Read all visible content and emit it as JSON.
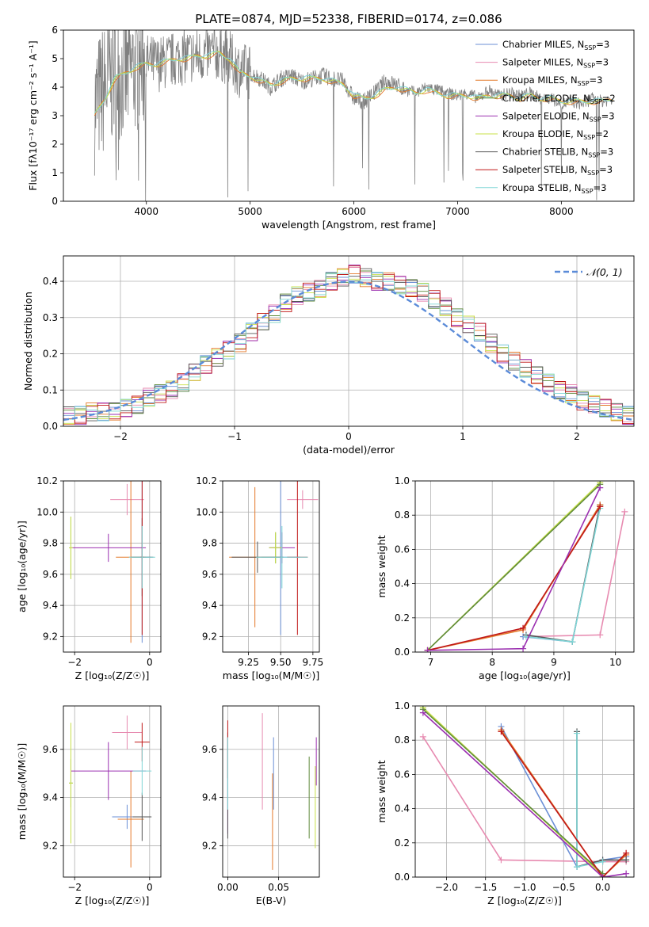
{
  "colors": {
    "chabrier_miles": "#6b8fd6",
    "salpeter_miles": "#e78ab0",
    "kroupa_miles": "#e47a2a",
    "chabrier_elodie": "#5f8a3a",
    "salpeter_elodie": "#9b30b0",
    "kroupa_elodie": "#c8e04a",
    "chabrier_stelib": "#555555",
    "salpeter_stelib": "#c01818",
    "kroupa_stelib": "#7fd6d6",
    "spectrum_gray": "#808080",
    "normal_curve": "#5b8bd8",
    "grid": "#b0b0b0"
  },
  "chart_data": [
    {
      "id": "spectrum",
      "type": "line",
      "title": "PLATE=0874, MJD=52338, FIBERID=0174, z=0.086",
      "xlabel": "wavelength [Angstrom, rest frame]",
      "ylabel": "Flux [fλ10⁻¹⁷ erg cm⁻² s⁻¹ A⁻¹]",
      "xlim": [
        3200,
        8700
      ],
      "ylim": [
        0,
        6
      ],
      "xticks": [
        4000,
        5000,
        6000,
        7000,
        8000
      ],
      "yticks": [
        0,
        1,
        2,
        3,
        4,
        5,
        6
      ],
      "grid": false,
      "legend_position": "top-right",
      "legend": [
        {
          "label": "Chabrier MILES, N",
          "sub": "SSP",
          "suffix": "=3",
          "color": "chabrier_miles"
        },
        {
          "label": "Salpeter MILES, N",
          "sub": "SSP",
          "suffix": "=3",
          "color": "salpeter_miles"
        },
        {
          "label": "Kroupa MILES, N",
          "sub": "SSP",
          "suffix": "=3",
          "color": "kroupa_miles"
        },
        {
          "label": "Chabrier ELODIE, N",
          "sub": "SSP",
          "suffix": "=2",
          "color": "chabrier_elodie"
        },
        {
          "label": "Salpeter ELODIE, N",
          "sub": "SSP",
          "suffix": "=3",
          "color": "salpeter_elodie"
        },
        {
          "label": "Kroupa ELODIE, N",
          "sub": "SSP",
          "suffix": "=2",
          "color": "kroupa_elodie"
        },
        {
          "label": "Chabrier STELIB, N",
          "sub": "SSP",
          "suffix": "=3",
          "color": "chabrier_stelib"
        },
        {
          "label": "Salpeter STELIB, N",
          "sub": "SSP",
          "suffix": "=3",
          "color": "salpeter_stelib"
        },
        {
          "label": "Kroupa STELIB, N",
          "sub": "SSP",
          "suffix": "=3",
          "color": "kroupa_stelib"
        }
      ],
      "data_x": [
        3500,
        3600,
        3700,
        3800,
        3900,
        4000,
        4100,
        4200,
        4300,
        4400,
        4500,
        4600,
        4700,
        4800,
        4900,
        5000,
        5100,
        5200,
        5300,
        5400,
        5500,
        5600,
        5700,
        5800,
        5900,
        6000,
        6100,
        6200,
        6300,
        6400,
        6500,
        6600,
        6700,
        6800,
        6900,
        7000,
        7100,
        7200,
        7300,
        7400,
        7500,
        7600,
        7700,
        7800,
        7900,
        8000,
        8100,
        8200,
        8300,
        8400,
        8500
      ],
      "data_y": [
        3.3,
        4.0,
        4.5,
        4.4,
        4.7,
        4.9,
        4.8,
        4.9,
        5.0,
        5.1,
        5.1,
        5.2,
        5.2,
        5.0,
        4.6,
        4.5,
        4.3,
        4.0,
        4.3,
        4.4,
        4.2,
        4.3,
        4.4,
        4.3,
        4.2,
        3.6,
        3.5,
        3.8,
        4.2,
        4.1,
        3.9,
        3.8,
        4.0,
        3.9,
        3.8,
        3.7,
        3.8,
        3.6,
        3.9,
        3.7,
        3.8,
        3.7,
        3.8,
        3.6,
        3.6,
        3.4,
        3.5,
        3.4,
        3.6,
        3.5,
        3.6
      ],
      "model_y": [
        3.0,
        3.6,
        4.3,
        4.5,
        4.7,
        4.8,
        4.8,
        4.9,
        5.0,
        5.0,
        5.1,
        5.1,
        5.2,
        5.0,
        4.5,
        4.4,
        4.2,
        4.1,
        4.2,
        4.3,
        4.3,
        4.3,
        4.3,
        4.2,
        4.1,
        3.7,
        3.6,
        3.7,
        3.9,
        4.0,
        3.9,
        3.8,
        3.9,
        3.8,
        3.7,
        3.7,
        3.7,
        3.6,
        3.7,
        3.7,
        3.7,
        3.6,
        3.7,
        3.6,
        3.6,
        3.5,
        3.5,
        3.5,
        3.5,
        3.5,
        3.6
      ]
    },
    {
      "id": "residuals",
      "type": "histogram",
      "xlabel": "(data-model)/error",
      "ylabel": "Normed distribution",
      "xlim": [
        -2.5,
        2.5
      ],
      "ylim": [
        0,
        0.47
      ],
      "xticks": [
        -2,
        -1,
        0,
        1,
        2
      ],
      "yticks": [
        0.0,
        0.1,
        0.2,
        0.3,
        0.4
      ],
      "grid": true,
      "legend_position": "top-right",
      "legend": [
        {
          "label": "𝒩(0, 1)",
          "color": "normal_curve"
        }
      ],
      "bin_edges": [
        -2.5,
        -2.4,
        -2.3,
        -2.2,
        -2.1,
        -2.0,
        -1.9,
        -1.8,
        -1.7,
        -1.6,
        -1.5,
        -1.4,
        -1.3,
        -1.2,
        -1.1,
        -1.0,
        -0.9,
        -0.8,
        -0.7,
        -0.6,
        -0.5,
        -0.4,
        -0.3,
        -0.2,
        -0.1,
        0.0,
        0.1,
        0.2,
        0.3,
        0.4,
        0.5,
        0.6,
        0.7,
        0.8,
        0.9,
        1.0,
        1.1,
        1.2,
        1.3,
        1.4,
        1.5,
        1.6,
        1.7,
        1.8,
        1.9,
        2.0,
        2.1,
        2.2,
        2.3,
        2.4,
        2.5
      ],
      "base_density": [
        0.03,
        0.03,
        0.04,
        0.04,
        0.04,
        0.05,
        0.06,
        0.08,
        0.09,
        0.1,
        0.12,
        0.15,
        0.17,
        0.19,
        0.21,
        0.23,
        0.26,
        0.29,
        0.31,
        0.34,
        0.36,
        0.37,
        0.38,
        0.4,
        0.41,
        0.42,
        0.41,
        0.4,
        0.4,
        0.39,
        0.38,
        0.37,
        0.35,
        0.33,
        0.3,
        0.28,
        0.26,
        0.23,
        0.2,
        0.18,
        0.16,
        0.14,
        0.12,
        0.1,
        0.09,
        0.07,
        0.06,
        0.05,
        0.04,
        0.03
      ],
      "normal_curve": {
        "mean": 0,
        "sigma": 1
      }
    },
    {
      "id": "age_vs_Z",
      "type": "errorbar",
      "xlabel": "Z [log₁₀(Z/Z☉)]",
      "ylabel": "age  [log₁₀(age/yr)]",
      "xlim": [
        -2.3,
        0.3
      ],
      "ylim": [
        9.1,
        10.2
      ],
      "xticks": [
        -2,
        0
      ],
      "yticks": [
        9.2,
        9.4,
        9.6,
        9.8,
        10.0,
        10.2
      ],
      "grid": true,
      "points": [
        {
          "color": "chabrier_miles",
          "x": -0.2,
          "xerr": 0.25,
          "y": 9.71,
          "yerr": 0.55
        },
        {
          "color": "salpeter_miles",
          "x": -0.6,
          "xerr": 0.45,
          "y": 10.08,
          "yerr": 0.1
        },
        {
          "color": "kroupa_miles",
          "x": -0.5,
          "xerr": 0.4,
          "y": 9.71,
          "yerr": 0.55
        },
        {
          "color": "chabrier_elodie",
          "x": -2.1,
          "xerr": 0.05,
          "y": 9.77,
          "yerr": 0.2
        },
        {
          "color": "salpeter_elodie",
          "x": -1.1,
          "xerr": 1.0,
          "y": 9.77,
          "yerr": 0.09
        },
        {
          "color": "kroupa_elodie",
          "x": -2.1,
          "xerr": 0.05,
          "y": 9.77,
          "yerr": 0.2
        },
        {
          "color": "chabrier_stelib",
          "x": -0.2,
          "xerr": 0.3,
          "y": 9.71,
          "yerr": 0.25
        },
        {
          "color": "salpeter_stelib",
          "x": -0.2,
          "xerr": 0.05,
          "y": 9.71,
          "yerr": 0.5
        },
        {
          "color": "kroupa_stelib",
          "x": -0.2,
          "xerr": 0.35,
          "y": 9.71,
          "yerr": 0.2
        }
      ]
    },
    {
      "id": "age_vs_mass",
      "type": "errorbar",
      "xlabel": "mass [log₁₀(M/M☉)]",
      "ylabel": "",
      "xlim": [
        9.05,
        9.8
      ],
      "ylim": [
        9.1,
        10.2
      ],
      "xticks": [
        9.25,
        9.5,
        9.75
      ],
      "yticks": [
        9.2,
        9.4,
        9.6,
        9.8,
        10.0,
        10.2
      ],
      "grid": true,
      "points": [
        {
          "color": "chabrier_miles",
          "x": 9.5,
          "xerr": 0.15,
          "y": 9.71,
          "yerr": 0.5
        },
        {
          "color": "salpeter_miles",
          "x": 9.67,
          "xerr": 0.12,
          "y": 10.08,
          "yerr": 0.06
        },
        {
          "color": "kroupa_miles",
          "x": 9.3,
          "xerr": 0.2,
          "y": 9.71,
          "yerr": 0.45
        },
        {
          "color": "chabrier_elodie",
          "x": 9.46,
          "xerr": 0.05,
          "y": 9.77,
          "yerr": 0.1
        },
        {
          "color": "salpeter_elodie",
          "x": 9.51,
          "xerr": 0.1,
          "y": 9.77,
          "yerr": 0.1
        },
        {
          "color": "kroupa_elodie",
          "x": 9.46,
          "xerr": 0.05,
          "y": 9.77,
          "yerr": 0.1
        },
        {
          "color": "chabrier_stelib",
          "x": 9.32,
          "xerr": 0.2,
          "y": 9.71,
          "yerr": 0.1
        },
        {
          "color": "salpeter_stelib",
          "x": 9.63,
          "xerr": 0.08,
          "y": 9.71,
          "yerr": 0.5
        },
        {
          "color": "kroupa_stelib",
          "x": 9.51,
          "xerr": 0.2,
          "y": 9.71,
          "yerr": 0.2
        }
      ]
    },
    {
      "id": "mass_weight_vs_age",
      "type": "line",
      "xlabel": "age  [log₁₀(age/yr)]",
      "ylabel": "mass weight",
      "xlim": [
        6.75,
        10.3
      ],
      "ylim": [
        0,
        1
      ],
      "xticks": [
        7,
        8,
        9,
        10
      ],
      "yticks": [
        0.0,
        0.2,
        0.4,
        0.6,
        0.8,
        1.0
      ],
      "grid": true,
      "series": [
        {
          "color": "salpeter_miles",
          "x": [
            8.5,
            9.75,
            10.15
          ],
          "y": [
            0.09,
            0.1,
            0.82
          ]
        },
        {
          "color": "chabrier_miles",
          "x": [
            8.5,
            9.3,
            9.75
          ],
          "y": [
            0.09,
            0.06,
            0.85
          ]
        },
        {
          "color": "chabrier_stelib",
          "x": [
            8.55,
            9.3,
            9.75
          ],
          "y": [
            0.1,
            0.06,
            0.86
          ]
        },
        {
          "color": "kroupa_stelib",
          "x": [
            8.55,
            9.3,
            9.75
          ],
          "y": [
            0.09,
            0.06,
            0.84
          ]
        },
        {
          "color": "kroupa_elodie",
          "x": [
            6.95,
            9.75
          ],
          "y": [
            0.01,
            0.99
          ]
        },
        {
          "color": "chabrier_elodie",
          "x": [
            6.95,
            9.75
          ],
          "y": [
            0.01,
            0.98
          ]
        },
        {
          "color": "kroupa_miles",
          "x": [
            6.95,
            8.5,
            9.75
          ],
          "y": [
            0.01,
            0.13,
            0.86
          ]
        },
        {
          "color": "salpeter_stelib",
          "x": [
            6.95,
            8.5,
            9.75
          ],
          "y": [
            0.01,
            0.14,
            0.85
          ]
        },
        {
          "color": "salpeter_elodie",
          "x": [
            6.95,
            8.5,
            9.75
          ],
          "y": [
            0.01,
            0.02,
            0.96
          ]
        }
      ]
    },
    {
      "id": "mass_vs_Z",
      "type": "errorbar",
      "xlabel": "Z [log₁₀(Z/Z☉)]",
      "ylabel": "mass [log₁₀(M/M☉)]",
      "xlim": [
        -2.3,
        0.3
      ],
      "ylim": [
        9.07,
        9.78
      ],
      "xticks": [
        -2,
        0
      ],
      "yticks": [
        9.2,
        9.4,
        9.6
      ],
      "grid": true,
      "points": [
        {
          "color": "chabrier_miles",
          "x": -0.6,
          "xerr": 0.4,
          "y": 9.32,
          "yerr": 0.05
        },
        {
          "color": "salpeter_miles",
          "x": -0.6,
          "xerr": 0.4,
          "y": 9.67,
          "yerr": 0.07
        },
        {
          "color": "kroupa_miles",
          "x": -0.5,
          "xerr": 0.35,
          "y": 9.31,
          "yerr": 0.2
        },
        {
          "color": "chabrier_elodie",
          "x": -2.1,
          "xerr": 0.05,
          "y": 9.46,
          "yerr": 0.1
        },
        {
          "color": "salpeter_elodie",
          "x": -1.1,
          "xerr": 1.0,
          "y": 9.51,
          "yerr": 0.12
        },
        {
          "color": "kroupa_elodie",
          "x": -2.1,
          "xerr": 0.05,
          "y": 9.46,
          "yerr": 0.25
        },
        {
          "color": "chabrier_stelib",
          "x": -0.2,
          "xerr": 0.25,
          "y": 9.32,
          "yerr": 0.1
        },
        {
          "color": "salpeter_stelib",
          "x": -0.2,
          "xerr": 0.2,
          "y": 9.63,
          "yerr": 0.08
        },
        {
          "color": "kroupa_stelib",
          "x": -0.2,
          "xerr": 0.25,
          "y": 9.51,
          "yerr": 0.1
        }
      ]
    },
    {
      "id": "mass_vs_EBV",
      "type": "errorbar",
      "xlabel": "E(B-V)",
      "ylabel": "",
      "xlim": [
        -0.005,
        0.09
      ],
      "ylim": [
        9.07,
        9.78
      ],
      "xticks": [
        0.0,
        0.05
      ],
      "yticks": [
        9.2,
        9.4,
        9.6
      ],
      "grid": true,
      "points": [
        {
          "color": "chabrier_miles",
          "x": 0.045,
          "xerr": 0.0,
          "y": 9.5,
          "yerr": 0.15
        },
        {
          "color": "salpeter_miles",
          "x": 0.034,
          "xerr": 0.0,
          "y": 9.55,
          "yerr": 0.2
        },
        {
          "color": "kroupa_miles",
          "x": 0.044,
          "xerr": 0.0,
          "y": 9.3,
          "yerr": 0.2
        },
        {
          "color": "chabrier_elodie",
          "x": 0.08,
          "xerr": 0.0,
          "y": 9.4,
          "yerr": 0.17
        },
        {
          "color": "salpeter_elodie",
          "x": 0.0,
          "xerr": 0.0,
          "y": 9.45,
          "yerr": 0.2
        },
        {
          "color": "kroupa_elodie",
          "x": 0.086,
          "xerr": 0.0,
          "y": 9.36,
          "yerr": 0.17
        },
        {
          "color": "chabrier_stelib",
          "x": 0.0,
          "xerr": 0.0,
          "y": 9.45,
          "yerr": 0.22
        },
        {
          "color": "salpeter_stelib",
          "x": 0.0,
          "xerr": 0.0,
          "y": 9.6,
          "yerr": 0.12
        },
        {
          "color": "kroupa_stelib",
          "x": 0.0,
          "xerr": 0.0,
          "y": 9.5,
          "yerr": 0.15
        },
        {
          "color": "salpeter_elodie",
          "x": 0.087,
          "xerr": 0.0,
          "y": 9.55,
          "yerr": 0.1
        }
      ]
    },
    {
      "id": "mass_weight_vs_Z",
      "type": "line",
      "xlabel": "Z [log₁₀(Z/Z☉)]",
      "ylabel": "mass weight",
      "xlim": [
        -2.4,
        0.4
      ],
      "ylim": [
        0,
        1
      ],
      "xticks": [
        -2.0,
        -1.5,
        -1.0,
        -0.5,
        0.0
      ],
      "yticks": [
        0.0,
        0.2,
        0.4,
        0.6,
        0.8,
        1.0
      ],
      "grid": true,
      "series": [
        {
          "color": "salpeter_miles",
          "x": [
            -2.3,
            -1.3,
            0.0,
            0.3
          ],
          "y": [
            0.82,
            0.1,
            0.09,
            0.09
          ]
        },
        {
          "color": "chabrier_miles",
          "x": [
            -1.3,
            -0.33,
            0.0,
            0.3
          ],
          "y": [
            0.88,
            0.06,
            0.1,
            0.12
          ]
        },
        {
          "color": "kroupa_miles",
          "x": [
            -1.3,
            0.0,
            0.3
          ],
          "y": [
            0.86,
            0.0,
            0.13
          ]
        },
        {
          "color": "chabrier_stelib",
          "x": [
            -0.33,
            -0.33,
            0.0,
            0.3
          ],
          "y": [
            0.85,
            0.06,
            0.1,
            0.1
          ]
        },
        {
          "color": "kroupa_stelib",
          "x": [
            -0.33,
            -0.33,
            0.0
          ],
          "y": [
            0.84,
            0.06,
            0.09
          ]
        },
        {
          "color": "kroupa_elodie",
          "x": [
            -2.3,
            0.0
          ],
          "y": [
            0.99,
            0.01
          ]
        },
        {
          "color": "chabrier_elodie",
          "x": [
            -2.3,
            0.0
          ],
          "y": [
            0.98,
            0.02
          ]
        },
        {
          "color": "salpeter_stelib",
          "x": [
            -1.3,
            0.0,
            0.3
          ],
          "y": [
            0.85,
            0.0,
            0.14
          ]
        },
        {
          "color": "salpeter_elodie",
          "x": [
            -2.3,
            0.0,
            0.3
          ],
          "y": [
            0.96,
            0.0,
            0.02
          ]
        }
      ]
    }
  ]
}
